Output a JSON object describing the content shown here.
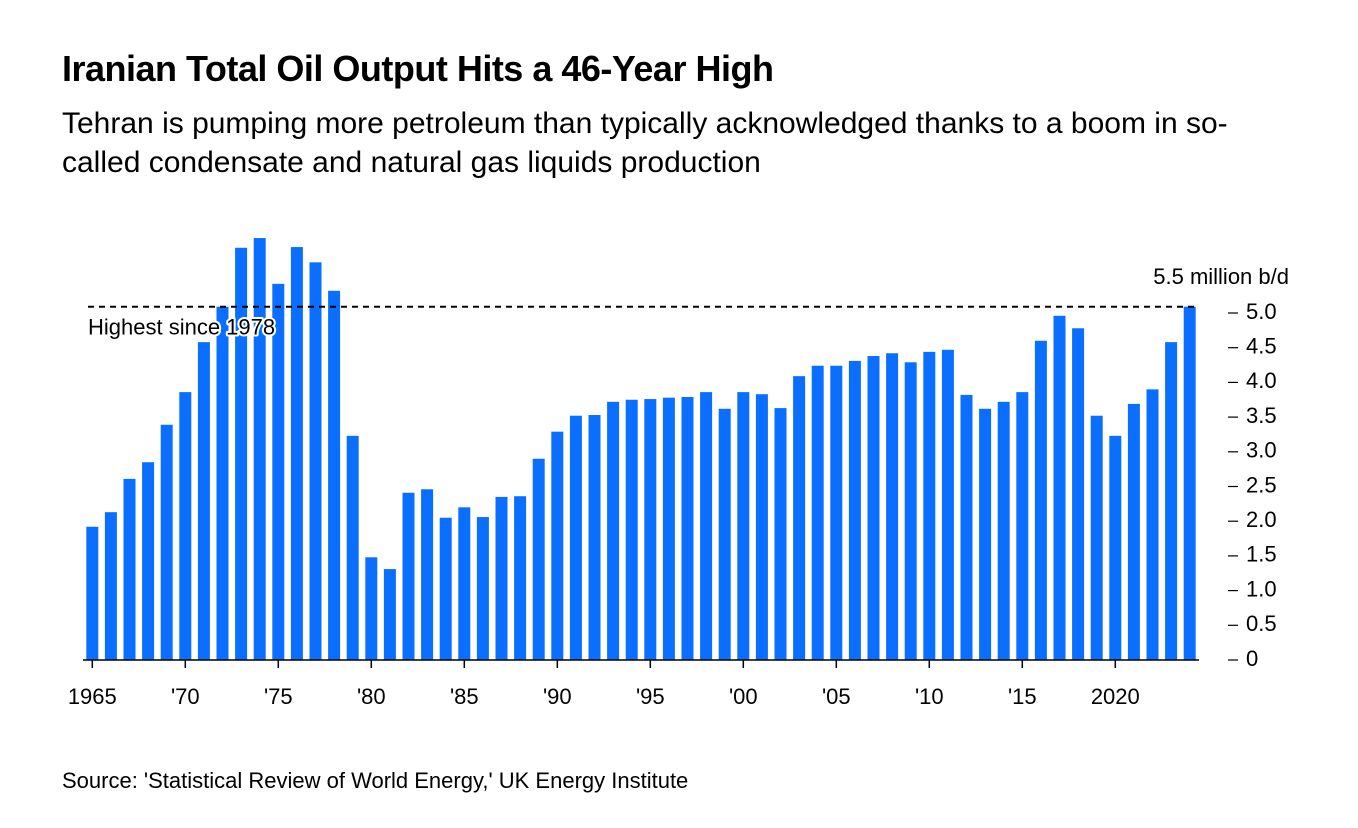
{
  "chart_data": {
    "type": "bar",
    "title": "Iranian Total Oil Output Hits a 46-Year High",
    "subtitle": "Tehran is pumping more petroleum than typically acknowledged thanks to a boom in so-called condensate and natural gas liquids production",
    "source": "Source: 'Statistical Review of World Energy,' UK Energy Institute",
    "color": "#0a6fff",
    "x": [
      1965,
      1966,
      1967,
      1968,
      1969,
      1970,
      1971,
      1972,
      1973,
      1974,
      1975,
      1976,
      1977,
      1978,
      1979,
      1980,
      1981,
      1982,
      1983,
      1984,
      1985,
      1986,
      1987,
      1988,
      1989,
      1990,
      1991,
      1992,
      1993,
      1994,
      1995,
      1996,
      1997,
      1998,
      1999,
      2000,
      2001,
      2002,
      2003,
      2004,
      2005,
      2006,
      2007,
      2008,
      2009,
      2010,
      2011,
      2012,
      2013,
      2014,
      2015,
      2016,
      2017,
      2018,
      2019,
      2020,
      2021,
      2022,
      2023,
      2024
    ],
    "values": [
      1.92,
      2.13,
      2.61,
      2.85,
      3.39,
      3.86,
      4.58,
      5.09,
      5.94,
      6.08,
      5.42,
      5.95,
      5.73,
      5.32,
      3.23,
      1.48,
      1.31,
      2.41,
      2.46,
      2.05,
      2.2,
      2.06,
      2.35,
      2.36,
      2.9,
      3.29,
      3.52,
      3.53,
      3.72,
      3.75,
      3.76,
      3.78,
      3.79,
      3.86,
      3.62,
      3.86,
      3.83,
      3.63,
      4.09,
      4.24,
      4.24,
      4.31,
      4.38,
      4.42,
      4.29,
      4.44,
      4.47,
      3.82,
      3.62,
      3.72,
      3.86,
      4.6,
      4.96,
      4.78,
      3.52,
      3.23,
      3.69,
      3.9,
      4.58,
      5.09
    ],
    "xlim": [
      1964.5,
      2024.5
    ],
    "xticks": [
      {
        "value": 1965,
        "label": "1965"
      },
      {
        "value": 1970,
        "label": "'70"
      },
      {
        "value": 1975,
        "label": "'75"
      },
      {
        "value": 1980,
        "label": "'80"
      },
      {
        "value": 1985,
        "label": "'85"
      },
      {
        "value": 1990,
        "label": "'90"
      },
      {
        "value": 1995,
        "label": "'95"
      },
      {
        "value": 2000,
        "label": "'00"
      },
      {
        "value": 2005,
        "label": "'05"
      },
      {
        "value": 2010,
        "label": "'10"
      },
      {
        "value": 2015,
        "label": "'15"
      },
      {
        "value": 2020,
        "label": "2020"
      }
    ],
    "ylim": [
      0,
      6.2
    ],
    "yticks": [
      0,
      0.5,
      {
        "value": 1,
        "label": "1.0"
      },
      1.5,
      {
        "value": 2,
        "label": "2.0"
      },
      2.5,
      {
        "value": 3,
        "label": "3.0"
      },
      3.5,
      {
        "value": 4,
        "label": "4.0"
      },
      4.5,
      {
        "value": 5,
        "label": "5.0"
      },
      {
        "value": 5.5,
        "label": "5.5 million b/d"
      }
    ],
    "reference_line": {
      "value": 5.09,
      "label": "Highest since 1978"
    }
  }
}
